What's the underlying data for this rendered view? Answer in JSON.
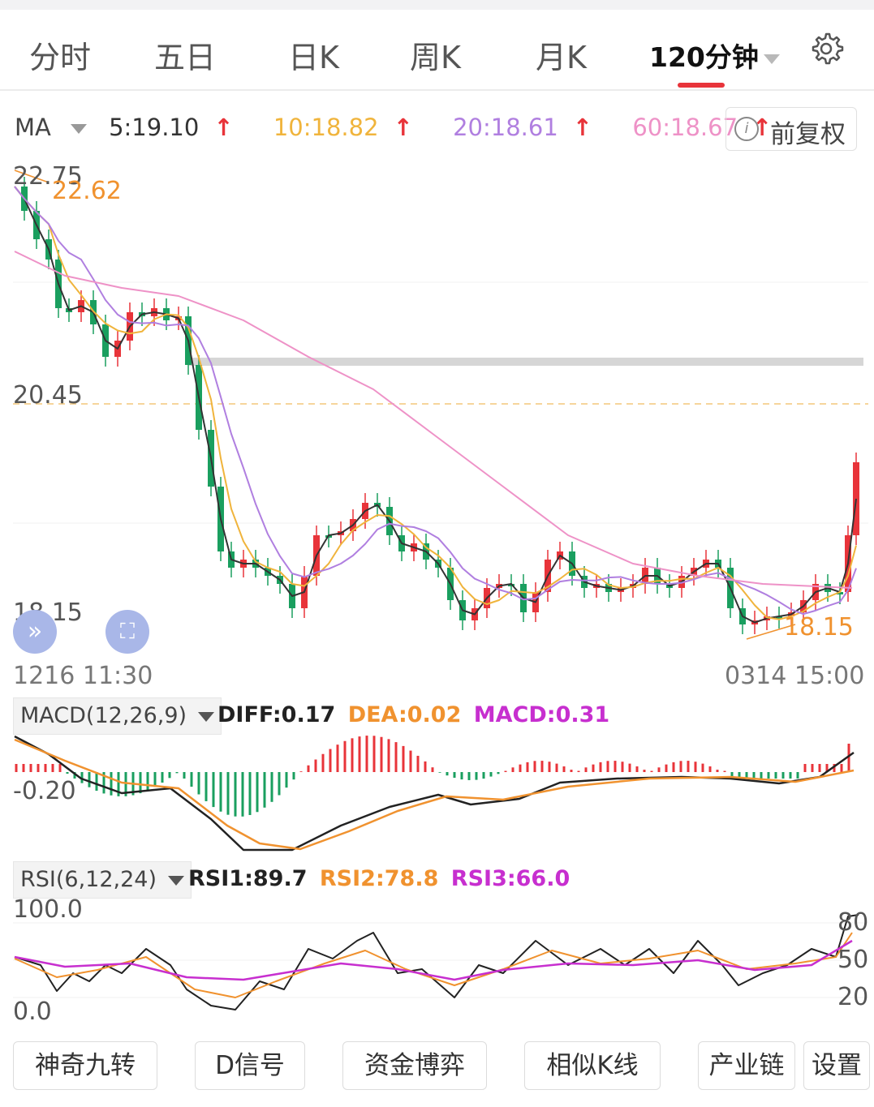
{
  "tabs": {
    "items": [
      "分时",
      "五日",
      "日K",
      "周K",
      "月K",
      "120分钟"
    ],
    "active": "120分钟"
  },
  "ma": {
    "label": "MA",
    "ma5": "5:19.10",
    "ma10": "10:18.82",
    "ma20": "20:18.61",
    "ma60": "60:18.67",
    "arrow": "↑",
    "colors": {
      "ma5": "#333333",
      "ma10": "#f0b43c",
      "ma20": "#b07fe0",
      "ma60": "#ee92c7"
    },
    "adjust_button": "前复权"
  },
  "kline": {
    "price_top": "22.75",
    "price_mid": "20.45",
    "price_bottom": "18.15",
    "high_marker": "22.62",
    "low_marker": "18.15",
    "time_start": "1216 11:30",
    "time_end": "0314 15:00",
    "up_color": "#e8343a",
    "down_color": "#1a9f5f"
  },
  "macd": {
    "selector": "MACD(12,26,9)",
    "diff": "DIFF:0.17",
    "dea": "DEA:0.02",
    "macd": "MACD:0.31",
    "axis_label": "-0.20",
    "colors": {
      "diff": "#222222",
      "dea": "#f0922f",
      "macd": "#c72fcf"
    }
  },
  "rsi": {
    "selector": "RSI(6,12,24)",
    "rsi1": "RSI1:89.7",
    "rsi2": "RSI2:78.8",
    "rsi3": "RSI3:66.0",
    "axis_top": "100.0",
    "axis_bottom": "0.0",
    "right_labels": [
      "80",
      "50",
      "20"
    ],
    "colors": {
      "rsi1": "#222222",
      "rsi2": "#f0922f",
      "rsi3": "#c72fcf"
    }
  },
  "bottom_buttons": [
    "神奇九转",
    "D信号",
    "资金博弈",
    "相似K线",
    "产业链",
    "设置"
  ]
}
